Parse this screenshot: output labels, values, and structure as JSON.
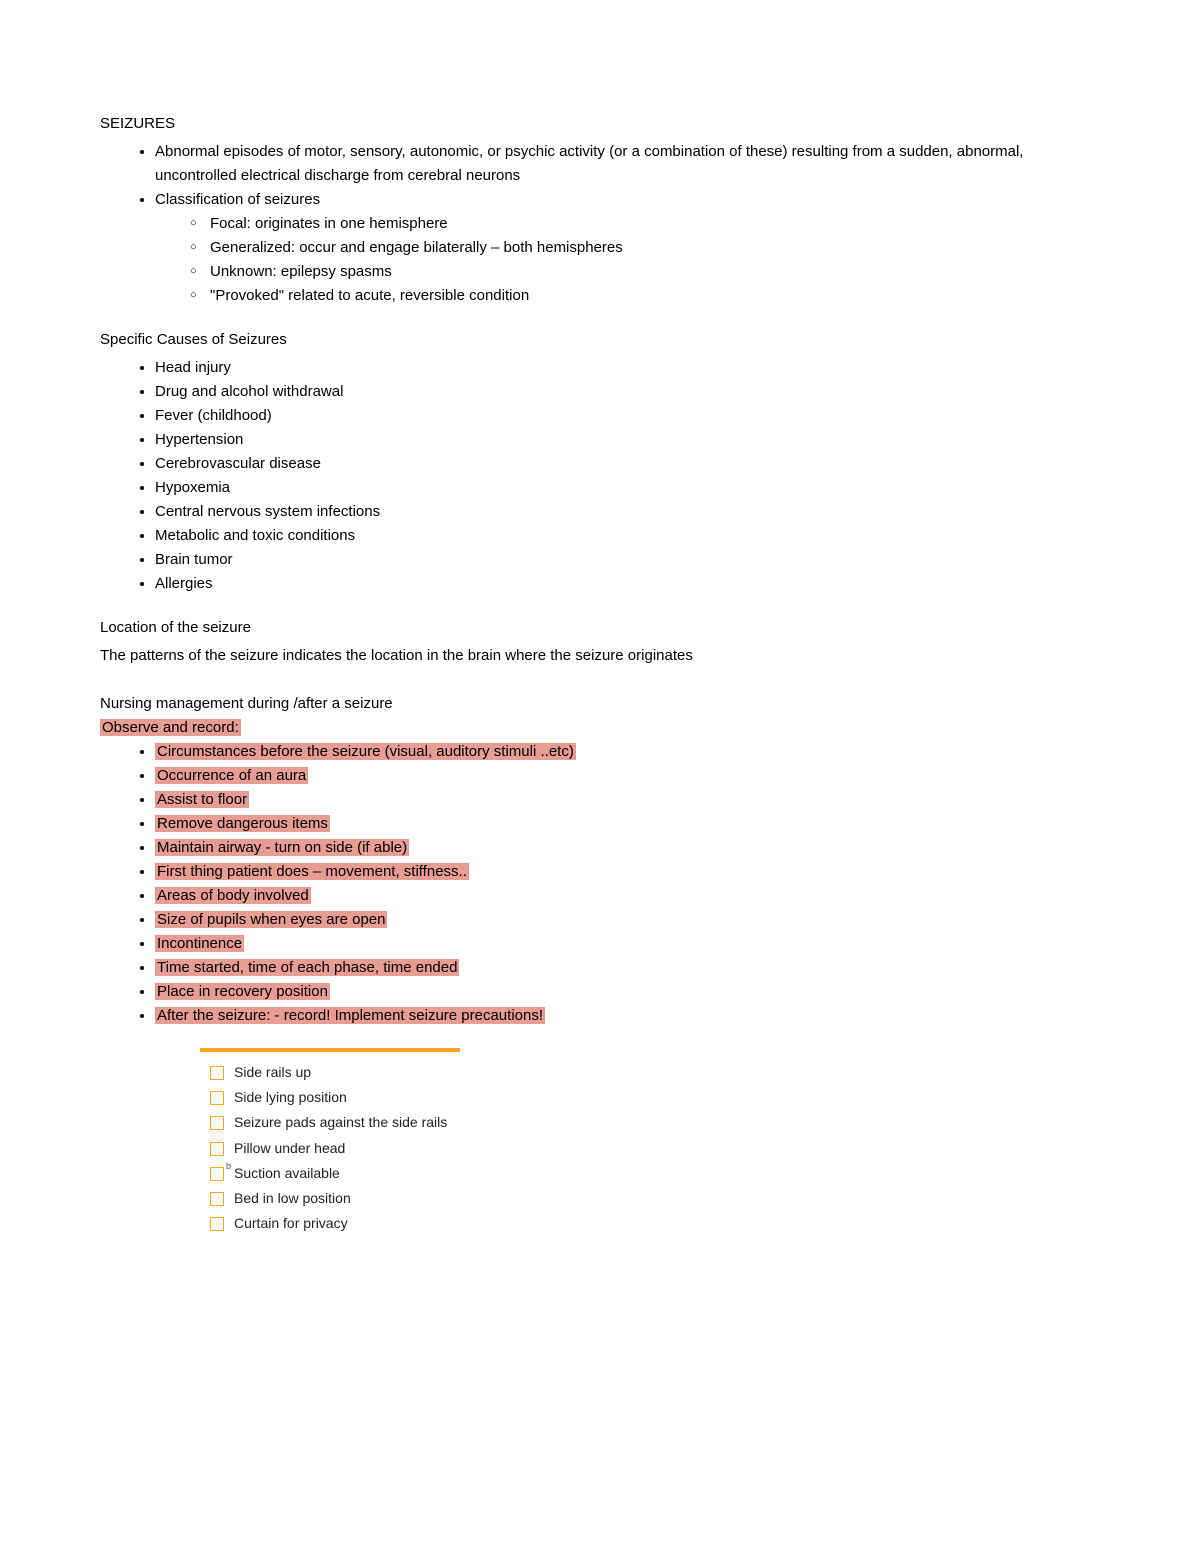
{
  "title": "SEIZURES",
  "highlight_color": "#e79c94",
  "accent_color": "#f5a623",
  "intro_items": [
    {
      "text": "Abnormal episodes of motor, sensory, autonomic, or psychic activity (or a combination of these) resulting from a sudden, abnormal, uncontrolled electrical discharge from cerebral neurons"
    },
    {
      "text": "Classification of seizures",
      "children": [
        "Focal: originates in one hemisphere",
        "Generalized: occur and engage bilaterally – both hemispheres",
        "Unknown: epilepsy spasms",
        "\"Provoked\" related to acute, reversible condition"
      ]
    }
  ],
  "causes_heading": "Specific Causes of Seizures",
  "causes": [
    "Head injury",
    "Drug and alcohol withdrawal",
    "Fever (childhood)",
    "Hypertension",
    "Cerebrovascular disease",
    "Hypoxemia",
    "Central nervous system infections",
    "Metabolic and toxic conditions",
    "Brain tumor",
    "Allergies"
  ],
  "location_heading": "Location of the seizure",
  "location_text": "The patterns of the seizure indicates the location in the brain where the seizure originates",
  "nursing_heading": "Nursing management during /after a seizure",
  "observe_label": "Observe and record:",
  "observe_items": [
    "Circumstances before the seizure (visual, auditory stimuli ..etc)",
    "Occurrence of an aura",
    "Assist to floor",
    "Remove dangerous  items",
    "Maintain airway - turn on side (if able)",
    "First thing patient does – movement, stiffness..",
    "Areas of body involved",
    "Size of pupils when eyes are open",
    "Incontinence",
    "Time started, time of each phase, time ended",
    "Place in recovery position",
    "After the seizure: - record! Implement seizure precautions!"
  ],
  "precautions": [
    {
      "text": "Side rails up",
      "sup": false
    },
    {
      "text": "Side lying position",
      "sup": false
    },
    {
      "text": "Seizure pads against the side rails",
      "sup": false
    },
    {
      "text": "Pillow under head",
      "sup": false
    },
    {
      "text": "Suction available",
      "sup": true
    },
    {
      "text": "Bed in low position",
      "sup": false
    },
    {
      "text": "Curtain for privacy",
      "sup": false
    }
  ]
}
